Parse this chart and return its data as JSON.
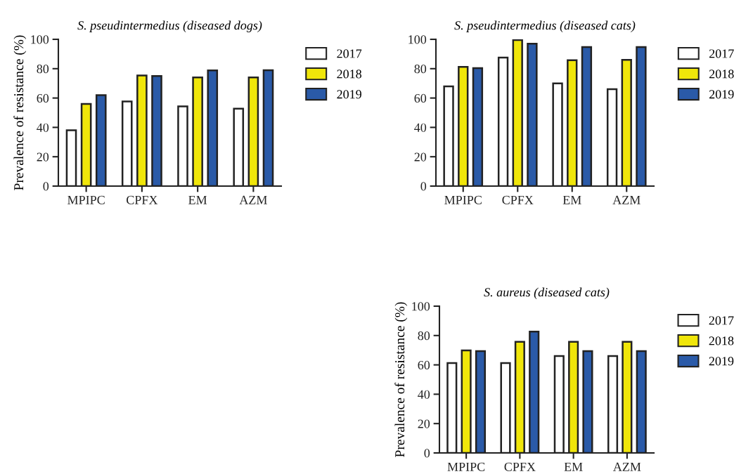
{
  "chart_data": [
    {
      "type": "bar",
      "title": "S. pseudintermedius (diseased dogs)",
      "ylabel": "Prevalence of resistance (%)",
      "categories": [
        "MPIPC",
        "CPFX",
        "EM",
        "AZM"
      ],
      "ylim": [
        0,
        100
      ],
      "yticks": [
        0,
        20,
        40,
        60,
        80,
        100
      ],
      "legend": "right",
      "grid": false,
      "series": [
        {
          "name": "2017",
          "color": "#ffffff",
          "values": [
            38,
            57.6,
            54.3,
            52.7
          ]
        },
        {
          "name": "2018",
          "color": "#f0e60a",
          "values": [
            56,
            75.3,
            74,
            74
          ]
        },
        {
          "name": "2019",
          "color": "#2a5aa8",
          "values": [
            62,
            75,
            78.8,
            79
          ]
        }
      ]
    },
    {
      "type": "bar",
      "title": "S. pseudintermedius (diseased cats)",
      "categories": [
        "MPIPC",
        "CPFX",
        "EM",
        "AZM"
      ],
      "ylim": [
        0,
        100
      ],
      "yticks": [
        0,
        20,
        40,
        60,
        80,
        100
      ],
      "legend": "right",
      "grid": false,
      "series": [
        {
          "name": "2017",
          "color": "#ffffff",
          "values": [
            68,
            87.6,
            70,
            66
          ]
        },
        {
          "name": "2018",
          "color": "#f0e60a",
          "values": [
            81.2,
            99.5,
            85.8,
            86
          ]
        },
        {
          "name": "2019",
          "color": "#2a5aa8",
          "values": [
            80.4,
            97,
            94.7,
            94.7
          ]
        }
      ]
    },
    {
      "type": "bar",
      "title": "S. aureus (diseased cats)",
      "ylabel": "Prevalence of resistance (%)",
      "categories": [
        "MPIPC",
        "CPFX",
        "EM",
        "AZM"
      ],
      "ylim": [
        0,
        100
      ],
      "yticks": [
        0,
        20,
        40,
        60,
        80,
        100
      ],
      "legend": "right",
      "grid": false,
      "series": [
        {
          "name": "2017",
          "color": "#ffffff",
          "values": [
            61.3,
            61.3,
            66,
            66
          ]
        },
        {
          "name": "2018",
          "color": "#f0e60a",
          "values": [
            69.8,
            75.7,
            75.7,
            75.7
          ]
        },
        {
          "name": "2019",
          "color": "#2a5aa8",
          "values": [
            69.4,
            82.7,
            69.4,
            69.4
          ]
        }
      ]
    }
  ]
}
